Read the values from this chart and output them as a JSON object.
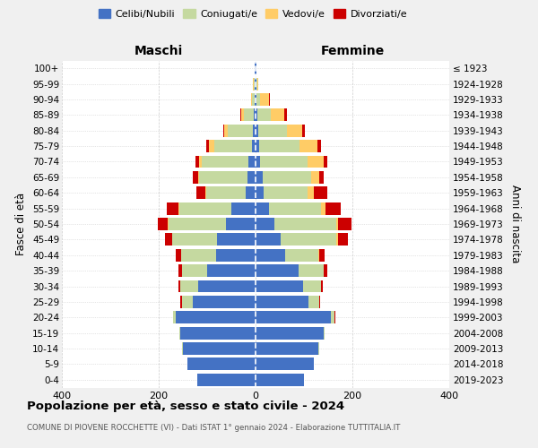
{
  "age_groups": [
    "0-4",
    "5-9",
    "10-14",
    "15-19",
    "20-24",
    "25-29",
    "30-34",
    "35-39",
    "40-44",
    "45-49",
    "50-54",
    "55-59",
    "60-64",
    "65-69",
    "70-74",
    "75-79",
    "80-84",
    "85-89",
    "90-94",
    "95-99",
    "100+"
  ],
  "birth_years": [
    "2019-2023",
    "2014-2018",
    "2009-2013",
    "2004-2008",
    "1999-2003",
    "1994-1998",
    "1989-1993",
    "1984-1988",
    "1979-1983",
    "1974-1978",
    "1969-1973",
    "1964-1968",
    "1959-1963",
    "1954-1958",
    "1949-1953",
    "1944-1948",
    "1939-1943",
    "1934-1938",
    "1929-1933",
    "1924-1928",
    "≤ 1923"
  ],
  "maschi": {
    "celibi": [
      120,
      140,
      150,
      155,
      165,
      130,
      118,
      100,
      82,
      80,
      62,
      50,
      20,
      16,
      14,
      8,
      5,
      4,
      2,
      2,
      1
    ],
    "coniugati": [
      0,
      0,
      1,
      2,
      5,
      22,
      38,
      52,
      72,
      92,
      118,
      108,
      82,
      100,
      98,
      78,
      52,
      20,
      5,
      2,
      1
    ],
    "vedovi": [
      0,
      0,
      0,
      0,
      0,
      0,
      0,
      0,
      0,
      1,
      2,
      2,
      2,
      3,
      5,
      10,
      8,
      5,
      3,
      1,
      0
    ],
    "divorziati": [
      0,
      0,
      0,
      0,
      0,
      3,
      4,
      8,
      10,
      14,
      20,
      24,
      18,
      10,
      8,
      5,
      2,
      2,
      0,
      0,
      0
    ]
  },
  "femmine": {
    "nubili": [
      100,
      120,
      130,
      140,
      155,
      110,
      98,
      88,
      62,
      52,
      38,
      28,
      16,
      14,
      10,
      8,
      6,
      4,
      2,
      1,
      1
    ],
    "coniugate": [
      0,
      0,
      1,
      2,
      8,
      22,
      38,
      52,
      68,
      115,
      128,
      108,
      92,
      100,
      98,
      82,
      58,
      28,
      8,
      2,
      0
    ],
    "vedove": [
      0,
      0,
      0,
      0,
      0,
      0,
      0,
      1,
      2,
      3,
      5,
      8,
      12,
      18,
      32,
      38,
      32,
      28,
      18,
      3,
      1
    ],
    "divorziate": [
      0,
      0,
      0,
      0,
      2,
      2,
      3,
      8,
      10,
      20,
      28,
      32,
      28,
      8,
      8,
      8,
      5,
      4,
      2,
      0,
      0
    ]
  },
  "colors": {
    "celibi_nubili": "#4472C4",
    "coniugati_e": "#C5D9A0",
    "vedovi_e": "#FFCC66",
    "divorziati_e": "#CC0000"
  },
  "xlim": 400,
  "title": "Popolazione per età, sesso e stato civile - 2024",
  "subtitle": "COMUNE DI PIOVENE ROCCHETTE (VI) - Dati ISTAT 1° gennaio 2024 - Elaborazione TUTTITALIA.IT",
  "ylabel": "Fasce di età",
  "ylabel_right": "Anni di nascita",
  "xlabel_left": "Maschi",
  "xlabel_right": "Femmine",
  "bg_color": "#f0f0f0",
  "plot_bg": "#ffffff"
}
